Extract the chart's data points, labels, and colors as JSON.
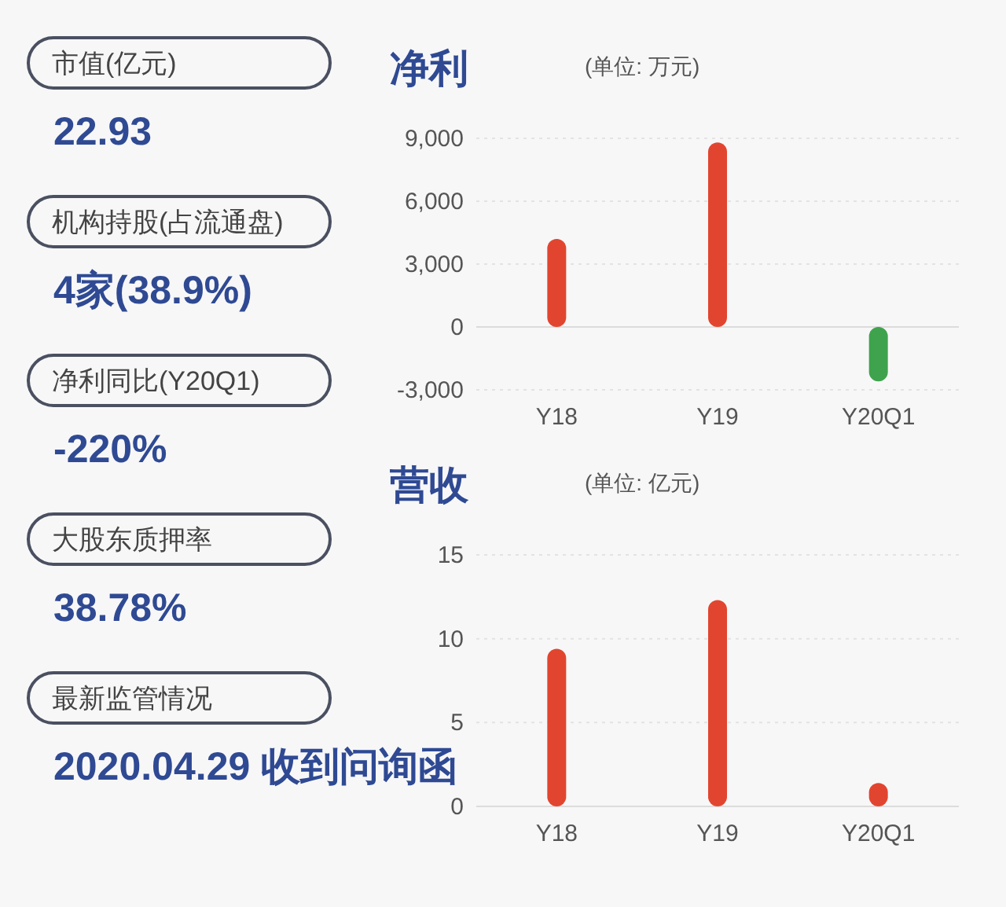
{
  "chart_data": [
    {
      "type": "other",
      "annotations": [
        "市值(亿元)",
        "22.93",
        "机构持股(占流通盘)",
        "4家(38.9%)",
        "净利同比(Y20Q1)",
        "-220%",
        "大股东质押率",
        "38.78%",
        "最新监管情况",
        "2020.04.29 收到问询函"
      ]
    },
    {
      "type": "bar",
      "title": "净利",
      "subtitle": "(单位: 万元)",
      "categories": [
        "Y18",
        "Y19",
        "Y20Q1"
      ],
      "values": [
        4200,
        8800,
        -2600
      ],
      "colors": [
        "#e2452f",
        "#e2452f",
        "#3fa34d"
      ],
      "ylim": [
        -3000,
        9000
      ],
      "yticks": [
        {
          "value": -3000,
          "label": "-3,000"
        },
        0,
        {
          "value": 3000,
          "label": "3,000"
        },
        {
          "value": 6000,
          "label": "6,000"
        },
        {
          "value": 9000,
          "label": "9,000"
        }
      ],
      "grid": "y"
    },
    {
      "type": "bar",
      "title": "营收",
      "subtitle": "(单位: 亿元)",
      "categories": [
        "Y18",
        "Y19",
        "Y20Q1"
      ],
      "values": [
        9.4,
        12.3,
        1.4
      ],
      "color": "#e2452f",
      "ylim": [
        0,
        15
      ],
      "yticks": [
        0,
        5,
        10,
        15
      ],
      "grid": "y"
    }
  ]
}
